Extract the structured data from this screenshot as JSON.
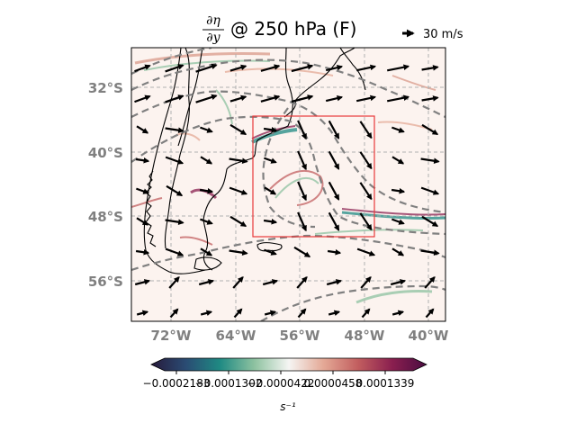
{
  "title": {
    "numerator": "∂η",
    "denominator": "∂y",
    "rest": "@ 250 hPa (F)"
  },
  "quiver_key": {
    "label": "30 m/s"
  },
  "axes": {
    "lat_labels": [
      "32°S",
      "40°S",
      "48°S",
      "56°S"
    ],
    "lon_labels": [
      "72°W",
      "64°W",
      "56°W",
      "48°W",
      "40°W"
    ],
    "lat_values": [
      -32,
      -40,
      -48,
      -56
    ],
    "lon_values": [
      -72,
      -64,
      -56,
      -48,
      -40
    ],
    "extent": {
      "lon_min": -76,
      "lon_max": -37,
      "lat_min": -61,
      "lat_max": -27
    }
  },
  "box": {
    "lon_min": -61,
    "lon_max": -46,
    "lat_min": -51,
    "lat_max": -36,
    "color": "#e8393a"
  },
  "colorbar": {
    "unit": "s⁻¹",
    "tick_labels": [
      "−0.0002183",
      "−0.0001302",
      "−0.0000422",
      "0.0000458",
      "0.0001339"
    ],
    "colors": [
      "#271a3b",
      "#2a4b73",
      "#1f8a83",
      "#8ec2a0",
      "#f5f5f3",
      "#e4a996",
      "#c25e5f",
      "#8a1f4f",
      "#4a0c41"
    ]
  },
  "colors": {
    "contour": "#808080",
    "vector": "#000000",
    "coast": "#000000",
    "grid": "#b0b0b0"
  }
}
